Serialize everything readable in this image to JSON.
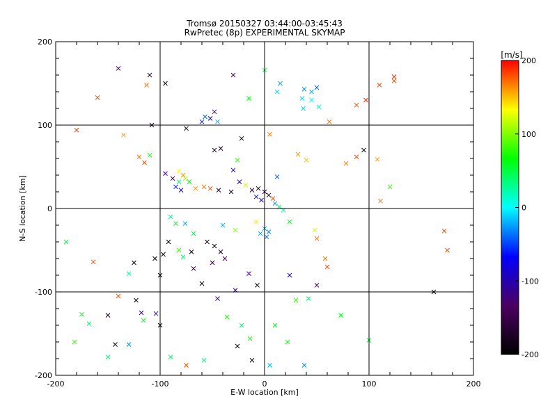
{
  "chart_data": {
    "type": "scatter",
    "title": "Tromsø 20150327 03:44:00-03:45:43",
    "subtitle": "RwPretec (8p) EXPERIMENTAL SKYMAP",
    "xlabel": "E-W location [km]",
    "ylabel": "N-S location [km]",
    "xlim": [
      -200,
      200
    ],
    "ylim": [
      -200,
      200
    ],
    "xticks": [
      -200,
      -100,
      0,
      100,
      200
    ],
    "yticks": [
      -200,
      -100,
      0,
      100,
      200
    ],
    "grid": true,
    "colorbar": {
      "label": "[m/s]",
      "range": [
        -200,
        200
      ],
      "ticks": [
        200,
        100,
        0,
        -100,
        -200
      ],
      "colors": [
        "#000000",
        "#4b0060",
        "#0000ff",
        "#00ffff",
        "#00ff00",
        "#ffff00",
        "#ff0000"
      ],
      "placement": "right"
    },
    "marker_size_encoding": "x = large vector, dot = small vector",
    "points": [
      {
        "x": -140,
        "y": 168,
        "v": -130,
        "m": "x"
      },
      {
        "x": -110,
        "y": 160,
        "v": -170,
        "m": "x"
      },
      {
        "x": -113,
        "y": 148,
        "v": 170,
        "m": "x"
      },
      {
        "x": -95,
        "y": 150,
        "v": -190,
        "m": "x"
      },
      {
        "x": -160,
        "y": 133,
        "v": 180,
        "m": "x"
      },
      {
        "x": -180,
        "y": 94,
        "v": 190,
        "m": "x"
      },
      {
        "x": -135,
        "y": 88,
        "v": 160,
        "m": "x"
      },
      {
        "x": -57,
        "y": 110,
        "v": -40,
        "m": "x"
      },
      {
        "x": -52,
        "y": 108,
        "v": -80,
        "m": "x"
      },
      {
        "x": -48,
        "y": 116,
        "v": -110,
        "m": "x"
      },
      {
        "x": -45,
        "y": 104,
        "v": -20,
        "m": "x"
      },
      {
        "x": -60,
        "y": 104,
        "v": -60,
        "m": "x"
      },
      {
        "x": -75,
        "y": 96,
        "v": -190,
        "m": "x"
      },
      {
        "x": -108,
        "y": 100,
        "v": -185,
        "m": "x"
      },
      {
        "x": -30,
        "y": 160,
        "v": -140,
        "m": "x"
      },
      {
        "x": -22,
        "y": 84,
        "v": -190,
        "m": "x"
      },
      {
        "x": -42,
        "y": 72,
        "v": -180,
        "m": "x"
      },
      {
        "x": -48,
        "y": 70,
        "v": -170,
        "m": "x"
      },
      {
        "x": 0,
        "y": 166,
        "v": 50,
        "m": "x"
      },
      {
        "x": 15,
        "y": 150,
        "v": -20,
        "m": "x"
      },
      {
        "x": 12,
        "y": 140,
        "v": -10,
        "m": "x"
      },
      {
        "x": 38,
        "y": 143,
        "v": -30,
        "m": "x"
      },
      {
        "x": 45,
        "y": 140,
        "v": -20,
        "m": "x"
      },
      {
        "x": 50,
        "y": 145,
        "v": -40,
        "m": "x"
      },
      {
        "x": 36,
        "y": 132,
        "v": -10,
        "m": "x"
      },
      {
        "x": 45,
        "y": 130,
        "v": 0,
        "m": "x"
      },
      {
        "x": 52,
        "y": 122,
        "v": 20,
        "m": "x"
      },
      {
        "x": 37,
        "y": 120,
        "v": -10,
        "m": "x"
      },
      {
        "x": -15,
        "y": 132,
        "v": 60,
        "m": "x"
      },
      {
        "x": 88,
        "y": 124,
        "v": 180,
        "m": "x"
      },
      {
        "x": 97,
        "y": 130,
        "v": 190,
        "m": "x"
      },
      {
        "x": 110,
        "y": 148,
        "v": 180,
        "m": "x"
      },
      {
        "x": 124,
        "y": 158,
        "v": 190,
        "m": "x"
      },
      {
        "x": 124,
        "y": 153,
        "v": 180,
        "m": "x"
      },
      {
        "x": 62,
        "y": 104,
        "v": 170,
        "m": "x"
      },
      {
        "x": 5,
        "y": 89,
        "v": 170,
        "m": "x"
      },
      {
        "x": 95,
        "y": 70,
        "v": -190,
        "m": "x"
      },
      {
        "x": 88,
        "y": 62,
        "v": 180,
        "m": "x"
      },
      {
        "x": 78,
        "y": 54,
        "v": 170,
        "m": "x"
      },
      {
        "x": 108,
        "y": 59,
        "v": 160,
        "m": "x"
      },
      {
        "x": 120,
        "y": 26,
        "v": 80,
        "m": "x"
      },
      {
        "x": 111,
        "y": 9,
        "v": 170,
        "m": "x"
      },
      {
        "x": 32,
        "y": 65,
        "v": 160,
        "m": "x"
      },
      {
        "x": 40,
        "y": 58,
        "v": 150,
        "m": "x"
      },
      {
        "x": -120,
        "y": 62,
        "v": 170,
        "m": "x"
      },
      {
        "x": -115,
        "y": 55,
        "v": 180,
        "m": "x"
      },
      {
        "x": -110,
        "y": 64,
        "v": 70,
        "m": "x"
      },
      {
        "x": -95,
        "y": 42,
        "v": -110,
        "m": "x"
      },
      {
        "x": -88,
        "y": 36,
        "v": -150,
        "m": "x"
      },
      {
        "x": -82,
        "y": 45,
        "v": 130,
        "m": "x"
      },
      {
        "x": -78,
        "y": 40,
        "v": 160,
        "m": "x"
      },
      {
        "x": -76,
        "y": 36,
        "v": 110,
        "m": "x"
      },
      {
        "x": -72,
        "y": 32,
        "v": 60,
        "m": "x"
      },
      {
        "x": -82,
        "y": 32,
        "v": 40,
        "m": "x"
      },
      {
        "x": -85,
        "y": 26,
        "v": -60,
        "m": "x"
      },
      {
        "x": -80,
        "y": 22,
        "v": -80,
        "m": "x"
      },
      {
        "x": -66,
        "y": 24,
        "v": 160,
        "m": "x"
      },
      {
        "x": -58,
        "y": 26,
        "v": 170,
        "m": "x"
      },
      {
        "x": -52,
        "y": 24,
        "v": 180,
        "m": "x"
      },
      {
        "x": -44,
        "y": 22,
        "v": -160,
        "m": "x"
      },
      {
        "x": -32,
        "y": 20,
        "v": -180,
        "m": "x"
      },
      {
        "x": -24,
        "y": 32,
        "v": -100,
        "m": "x"
      },
      {
        "x": -18,
        "y": 28,
        "v": 120,
        "m": "x"
      },
      {
        "x": -12,
        "y": 22,
        "v": -170,
        "m": "x"
      },
      {
        "x": -6,
        "y": 24,
        "v": -190,
        "m": "x"
      },
      {
        "x": 0,
        "y": 20,
        "v": -150,
        "m": "x"
      },
      {
        "x": 4,
        "y": 16,
        "v": -170,
        "m": "x"
      },
      {
        "x": -8,
        "y": 14,
        "v": -60,
        "m": "x"
      },
      {
        "x": 8,
        "y": 12,
        "v": 180,
        "m": "x"
      },
      {
        "x": -3,
        "y": 10,
        "v": -100,
        "m": "x"
      },
      {
        "x": 10,
        "y": 6,
        "v": -30,
        "m": "x"
      },
      {
        "x": 14,
        "y": 2,
        "v": 40,
        "m": "x"
      },
      {
        "x": 18,
        "y": -2,
        "v": 20,
        "m": "x"
      },
      {
        "x": 0,
        "y": -24,
        "v": -20,
        "m": "x"
      },
      {
        "x": 4,
        "y": -28,
        "v": -30,
        "m": "x"
      },
      {
        "x": -4,
        "y": -30,
        "v": -20,
        "m": "x"
      },
      {
        "x": 2,
        "y": -34,
        "v": -40,
        "m": "x"
      },
      {
        "x": 12,
        "y": 38,
        "v": -40,
        "m": "x"
      },
      {
        "x": -30,
        "y": 46,
        "v": -90,
        "m": "x"
      },
      {
        "x": -26,
        "y": 58,
        "v": 80,
        "m": "x"
      },
      {
        "x": -175,
        "y": -127,
        "v": 60,
        "m": "x"
      },
      {
        "x": -168,
        "y": -138,
        "v": 40,
        "m": "x"
      },
      {
        "x": -150,
        "y": -128,
        "v": -180,
        "m": "x"
      },
      {
        "x": -143,
        "y": -163,
        "v": -190,
        "m": "x"
      },
      {
        "x": -130,
        "y": -163,
        "v": -30,
        "m": "x"
      },
      {
        "x": -123,
        "y": -110,
        "v": -190,
        "m": "x"
      },
      {
        "x": -118,
        "y": -125,
        "v": -120,
        "m": "x"
      },
      {
        "x": -116,
        "y": -134,
        "v": 60,
        "m": "x"
      },
      {
        "x": -100,
        "y": -140,
        "v": -190,
        "m": "x"
      },
      {
        "x": -104,
        "y": -126,
        "v": -100,
        "m": "x"
      },
      {
        "x": -100,
        "y": -80,
        "v": -190,
        "m": "x"
      },
      {
        "x": -105,
        "y": -60,
        "v": -180,
        "m": "x"
      },
      {
        "x": -97,
        "y": -55,
        "v": -190,
        "m": "x"
      },
      {
        "x": -92,
        "y": -40,
        "v": -190,
        "m": "x"
      },
      {
        "x": -82,
        "y": -50,
        "v": 80,
        "m": "x"
      },
      {
        "x": -70,
        "y": -52,
        "v": -180,
        "m": "x"
      },
      {
        "x": -68,
        "y": -72,
        "v": -150,
        "m": "x"
      },
      {
        "x": -78,
        "y": -58,
        "v": 40,
        "m": "x"
      },
      {
        "x": -55,
        "y": -40,
        "v": -180,
        "m": "x"
      },
      {
        "x": -48,
        "y": -45,
        "v": -190,
        "m": "x"
      },
      {
        "x": -42,
        "y": -52,
        "v": -170,
        "m": "x"
      },
      {
        "x": -50,
        "y": -65,
        "v": -150,
        "m": "x"
      },
      {
        "x": -38,
        "y": -60,
        "v": -130,
        "m": "x"
      },
      {
        "x": -60,
        "y": -90,
        "v": -190,
        "m": "x"
      },
      {
        "x": -45,
        "y": -108,
        "v": -110,
        "m": "x"
      },
      {
        "x": -28,
        "y": -98,
        "v": -110,
        "m": "x"
      },
      {
        "x": -36,
        "y": -130,
        "v": 70,
        "m": "x"
      },
      {
        "x": -22,
        "y": -140,
        "v": 40,
        "m": "x"
      },
      {
        "x": -14,
        "y": -156,
        "v": 70,
        "m": "x"
      },
      {
        "x": -26,
        "y": -165,
        "v": -190,
        "m": "x"
      },
      {
        "x": -12,
        "y": -182,
        "v": -190,
        "m": "x"
      },
      {
        "x": -58,
        "y": -182,
        "v": 40,
        "m": "x"
      },
      {
        "x": -75,
        "y": -188,
        "v": 180,
        "m": "x"
      },
      {
        "x": -90,
        "y": -178,
        "v": 40,
        "m": "x"
      },
      {
        "x": -150,
        "y": -178,
        "v": 40,
        "m": "x"
      },
      {
        "x": -182,
        "y": -160,
        "v": 80,
        "m": "x"
      },
      {
        "x": -190,
        "y": -40,
        "v": 50,
        "m": "x"
      },
      {
        "x": -164,
        "y": -64,
        "v": 180,
        "m": "x"
      },
      {
        "x": -125,
        "y": -65,
        "v": -180,
        "m": "x"
      },
      {
        "x": -140,
        "y": -105,
        "v": 180,
        "m": "x"
      },
      {
        "x": -85,
        "y": -18,
        "v": 60,
        "m": "x"
      },
      {
        "x": -68,
        "y": -30,
        "v": 50,
        "m": "x"
      },
      {
        "x": -76,
        "y": -18,
        "v": -20,
        "m": "x"
      },
      {
        "x": -90,
        "y": -10,
        "v": 30,
        "m": "x"
      },
      {
        "x": -15,
        "y": -78,
        "v": -120,
        "m": "x"
      },
      {
        "x": -7,
        "y": -92,
        "v": -190,
        "m": "x"
      },
      {
        "x": 24,
        "y": -80,
        "v": -100,
        "m": "x"
      },
      {
        "x": 30,
        "y": -110,
        "v": 80,
        "m": "x"
      },
      {
        "x": 42,
        "y": -108,
        "v": 40,
        "m": "x"
      },
      {
        "x": 50,
        "y": -92,
        "v": -140,
        "m": "x"
      },
      {
        "x": 60,
        "y": -70,
        "v": 180,
        "m": "x"
      },
      {
        "x": 58,
        "y": -60,
        "v": 170,
        "m": "x"
      },
      {
        "x": 10,
        "y": -140,
        "v": 60,
        "m": "x"
      },
      {
        "x": 22,
        "y": -160,
        "v": 70,
        "m": "x"
      },
      {
        "x": 5,
        "y": -188,
        "v": -20,
        "m": "x"
      },
      {
        "x": 38,
        "y": -188,
        "v": -30,
        "m": "x"
      },
      {
        "x": 73,
        "y": -128,
        "v": 60,
        "m": "x"
      },
      {
        "x": 100,
        "y": -158,
        "v": 50,
        "m": "x"
      },
      {
        "x": 162,
        "y": -100,
        "v": -180,
        "m": "x"
      },
      {
        "x": 175,
        "y": -50,
        "v": 180,
        "m": "x"
      },
      {
        "x": 172,
        "y": -27,
        "v": 180,
        "m": "x"
      },
      {
        "x": 48,
        "y": -26,
        "v": 120,
        "m": "x"
      },
      {
        "x": 50,
        "y": -36,
        "v": 170,
        "m": "x"
      },
      {
        "x": -28,
        "y": -26,
        "v": 100,
        "m": "x"
      },
      {
        "x": -8,
        "y": -16,
        "v": 140,
        "m": "x"
      },
      {
        "x": 24,
        "y": -16,
        "v": 60,
        "m": "x"
      },
      {
        "x": -40,
        "y": -20,
        "v": -20,
        "m": "x"
      },
      {
        "x": -130,
        "y": -78,
        "v": 20,
        "m": "x"
      }
    ]
  }
}
